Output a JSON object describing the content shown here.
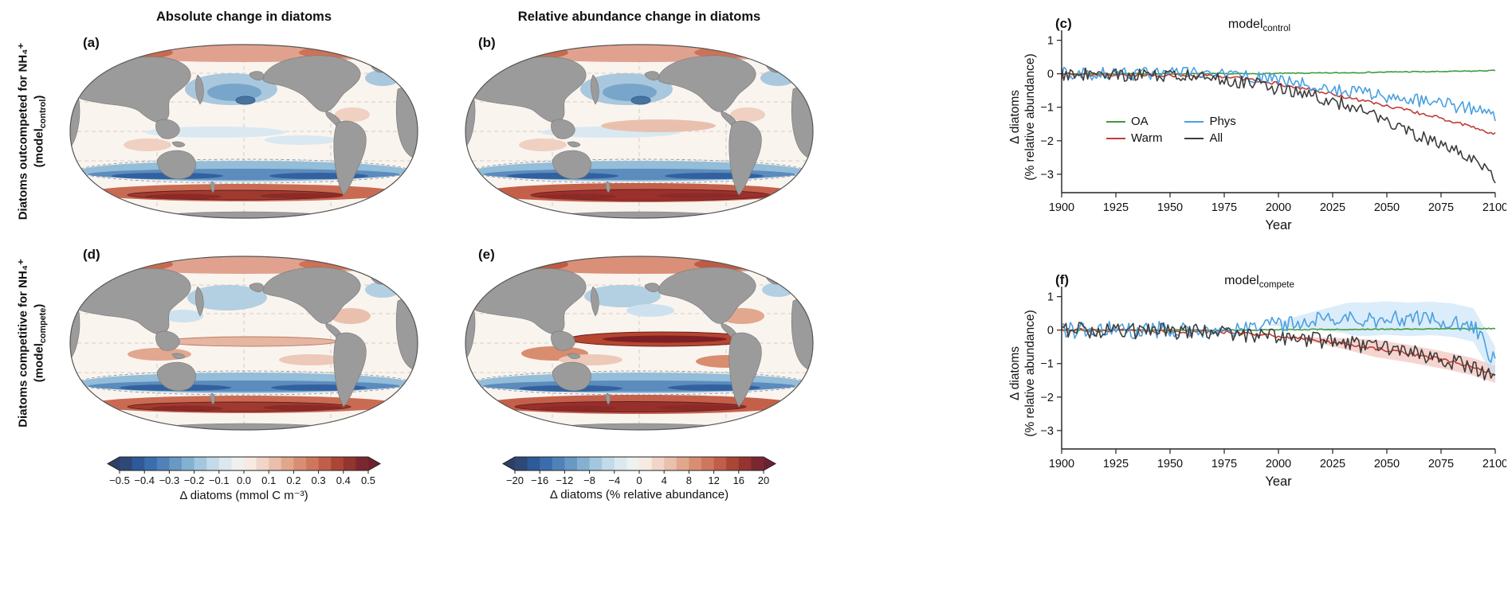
{
  "figure": {
    "column_titles": [
      "Absolute change in diatoms",
      "Relative abundance change in diatoms"
    ],
    "rows": [
      {
        "title": "Diatoms outcompeted for NH₄⁺",
        "model_prefix": "(model",
        "model_sub": "control",
        "model_close": ")"
      },
      {
        "title": "Diatoms competitive for NH₄⁺",
        "model_prefix": "(model",
        "model_sub": "compete",
        "model_close": ")"
      }
    ],
    "panel_letters": {
      "a": "(a)",
      "b": "(b)",
      "c": "(c)",
      "d": "(d)",
      "e": "(e)",
      "f": "(f)"
    },
    "colorbars": [
      {
        "ticks": [
          "−0.5",
          "−0.4",
          "−0.3",
          "−0.2",
          "−0.1",
          "0.0",
          "0.1",
          "0.2",
          "0.3",
          "0.4",
          "0.5"
        ],
        "label": "Δ diatoms (mmol C m⁻³)"
      },
      {
        "ticks": [
          "−20",
          "−16",
          "−12",
          "−8",
          "−4",
          "0",
          "4",
          "8",
          "12",
          "16",
          "20"
        ],
        "label": "Δ diatoms (% relative abundance)"
      }
    ]
  },
  "colors": {
    "land": "#9b9b9b",
    "ocean_base": "#faf4ef",
    "colormap_stops": [
      "#2d3f66",
      "#2f63a8",
      "#5b8cbd",
      "#93bdd8",
      "#d3e4ee",
      "#f8f4f0",
      "#eecbbc",
      "#dd9a7c",
      "#c96b53",
      "#a13a2e",
      "#6e2030"
    ]
  },
  "chart_data": [
    {
      "id": "c",
      "type": "line",
      "title_prefix": "model",
      "title_sub": "control",
      "xlabel": "Year",
      "ylabel_line1": "Δ diatoms",
      "ylabel_line2": "(% relative abundance)",
      "xlim": [
        1900,
        2100
      ],
      "ylim": [
        -3.55,
        1.3
      ],
      "xticks": [
        1900,
        1925,
        1950,
        1975,
        2000,
        2025,
        2050,
        2075,
        2100
      ],
      "yticks": [
        1,
        0,
        -1,
        -2,
        -3
      ],
      "legend_position": "center-left",
      "legend": [
        {
          "name": "OA",
          "color": "#3f9b3f"
        },
        {
          "name": "Warm",
          "color": "#c23c34"
        },
        {
          "name": "Phys",
          "color": "#4aa0e0"
        },
        {
          "name": "All",
          "color": "#3d3d3d"
        }
      ],
      "x_anchors": [
        1900,
        1910,
        1920,
        1930,
        1940,
        1950,
        1960,
        1970,
        1980,
        1990,
        2000,
        2010,
        2020,
        2030,
        2040,
        2050,
        2060,
        2070,
        2080,
        2090,
        2100
      ],
      "series": [
        {
          "name": "OA",
          "color": "#3f9b3f",
          "noise": 0.015,
          "values": [
            0,
            0,
            0,
            0,
            0,
            0,
            0,
            0,
            0,
            0,
            0.01,
            0.02,
            0.02,
            0.03,
            0.04,
            0.05,
            0.06,
            0.06,
            0.07,
            0.08,
            0.1
          ]
        },
        {
          "name": "Warm",
          "color": "#c23c34",
          "noise": 0.05,
          "values": [
            0,
            -0.02,
            -0.03,
            -0.03,
            -0.04,
            -0.05,
            -0.05,
            -0.08,
            -0.12,
            -0.2,
            -0.3,
            -0.42,
            -0.55,
            -0.68,
            -0.82,
            -0.96,
            -1.1,
            -1.25,
            -1.42,
            -1.6,
            -1.8
          ]
        },
        {
          "name": "Phys",
          "color": "#4aa0e0",
          "noise": 0.2,
          "values": [
            0,
            0,
            0,
            0,
            0,
            0,
            0,
            -0.02,
            -0.05,
            -0.1,
            -0.18,
            -0.3,
            -0.42,
            -0.52,
            -0.6,
            -0.68,
            -0.75,
            -0.85,
            -0.95,
            -1.05,
            -1.35
          ]
        },
        {
          "name": "All",
          "color": "#3d3d3d",
          "noise": 0.2,
          "values": [
            0,
            0,
            -0.02,
            -0.03,
            -0.04,
            -0.05,
            -0.06,
            -0.1,
            -0.2,
            -0.32,
            -0.45,
            -0.58,
            -0.72,
            -0.9,
            -1.12,
            -1.45,
            -1.72,
            -1.98,
            -2.25,
            -2.62,
            -3.15
          ]
        }
      ]
    },
    {
      "id": "f",
      "type": "line",
      "title_prefix": "model",
      "title_sub": "compete",
      "xlabel": "Year",
      "ylabel_line1": "Δ diatoms",
      "ylabel_line2": "(% relative abundance)",
      "xlim": [
        1900,
        2100
      ],
      "ylim": [
        -3.55,
        1.3
      ],
      "xticks": [
        1900,
        1925,
        1950,
        1975,
        2000,
        2025,
        2050,
        2075,
        2100
      ],
      "yticks": [
        1,
        0,
        -1,
        -2,
        -3
      ],
      "legend": [],
      "x_anchors": [
        1900,
        1910,
        1920,
        1930,
        1940,
        1950,
        1960,
        1970,
        1980,
        1990,
        2000,
        2010,
        2020,
        2030,
        2040,
        2050,
        2060,
        2070,
        2080,
        2090,
        2100
      ],
      "series": [
        {
          "name": "OA",
          "color": "#3f9b3f",
          "noise": 0.015,
          "values": [
            0,
            0,
            0,
            0,
            0,
            0,
            0,
            0,
            0,
            0,
            0.01,
            0.01,
            0.02,
            0.02,
            0.02,
            0.03,
            0.03,
            0.03,
            0.04,
            0.04,
            0.05
          ]
        },
        {
          "name": "Warm",
          "color": "#c23c34",
          "noise": 0.05,
          "band": {
            "start": 2005,
            "ramp": 40,
            "half": 0.26,
            "color": "#f0b9b3"
          },
          "values": [
            0,
            0,
            -0.02,
            -0.02,
            -0.03,
            -0.03,
            -0.04,
            -0.05,
            -0.08,
            -0.12,
            -0.18,
            -0.24,
            -0.32,
            -0.4,
            -0.5,
            -0.6,
            -0.7,
            -0.82,
            -0.95,
            -1.1,
            -1.32
          ]
        },
        {
          "name": "Phys",
          "color": "#4aa0e0",
          "noise": 0.26,
          "band": {
            "start": 1995,
            "ramp": 40,
            "half": 0.5,
            "color": "#c3e0f6"
          },
          "values": [
            0,
            0,
            0,
            0,
            0,
            0,
            0,
            0.02,
            0.05,
            0.1,
            0.18,
            0.25,
            0.3,
            0.35,
            0.32,
            0.36,
            0.32,
            0.35,
            0.3,
            0.15,
            -1.0
          ]
        },
        {
          "name": "All",
          "color": "#3d3d3d",
          "noise": 0.24,
          "values": [
            0,
            0,
            -0.02,
            -0.02,
            -0.03,
            -0.04,
            -0.05,
            -0.06,
            -0.1,
            -0.15,
            -0.2,
            -0.26,
            -0.32,
            -0.38,
            -0.46,
            -0.56,
            -0.66,
            -0.8,
            -0.95,
            -1.12,
            -1.45
          ]
        }
      ]
    }
  ]
}
